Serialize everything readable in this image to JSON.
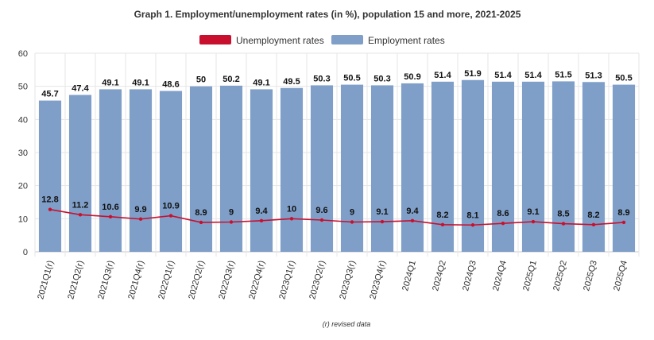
{
  "chart_data": {
    "type": "bar",
    "title": "Graph 1. Employment/unemployment rates (in %), population 15 and more, 2021-2025",
    "categories": [
      "2021Q1(r)",
      "2021Q2(r)",
      "2021Q3(r)",
      "2021Q4(r)",
      "2022Q1(r)",
      "2022Q2(r)",
      "2022Q3(r)",
      "2022Q4(r)",
      "2023Q1(r)",
      "2023Q2(r)",
      "2023Q3(r)",
      "2023Q4(r)",
      "2024Q1",
      "2024Q2",
      "2024Q3",
      "2024Q4",
      "2025Q1",
      "2025Q2",
      "2025Q3",
      "2025Q4"
    ],
    "series": [
      {
        "name": "Unemployment rates",
        "type": "line",
        "color": "#c8102e",
        "values": [
          12.8,
          11.2,
          10.6,
          9.9,
          10.9,
          8.9,
          9,
          9.4,
          10,
          9.6,
          9,
          9.1,
          9.4,
          8.2,
          8.1,
          8.6,
          9.1,
          8.5,
          8.2,
          8.9
        ]
      },
      {
        "name": "Employment rates",
        "type": "bar",
        "color": "#7f9fc8",
        "values": [
          45.7,
          47.4,
          49.1,
          49.1,
          48.6,
          50,
          50.2,
          49.1,
          49.5,
          50.3,
          50.5,
          50.3,
          50.9,
          51.4,
          51.9,
          51.4,
          51.4,
          51.5,
          51.3,
          50.5
        ]
      }
    ],
    "yticks": [
      0,
      10,
      20,
      30,
      40,
      50,
      60
    ],
    "ylim": [
      0,
      60
    ],
    "xlabel": "",
    "ylabel": "",
    "grid": true,
    "legend": "top-center",
    "footnote": "(r) revised data"
  }
}
